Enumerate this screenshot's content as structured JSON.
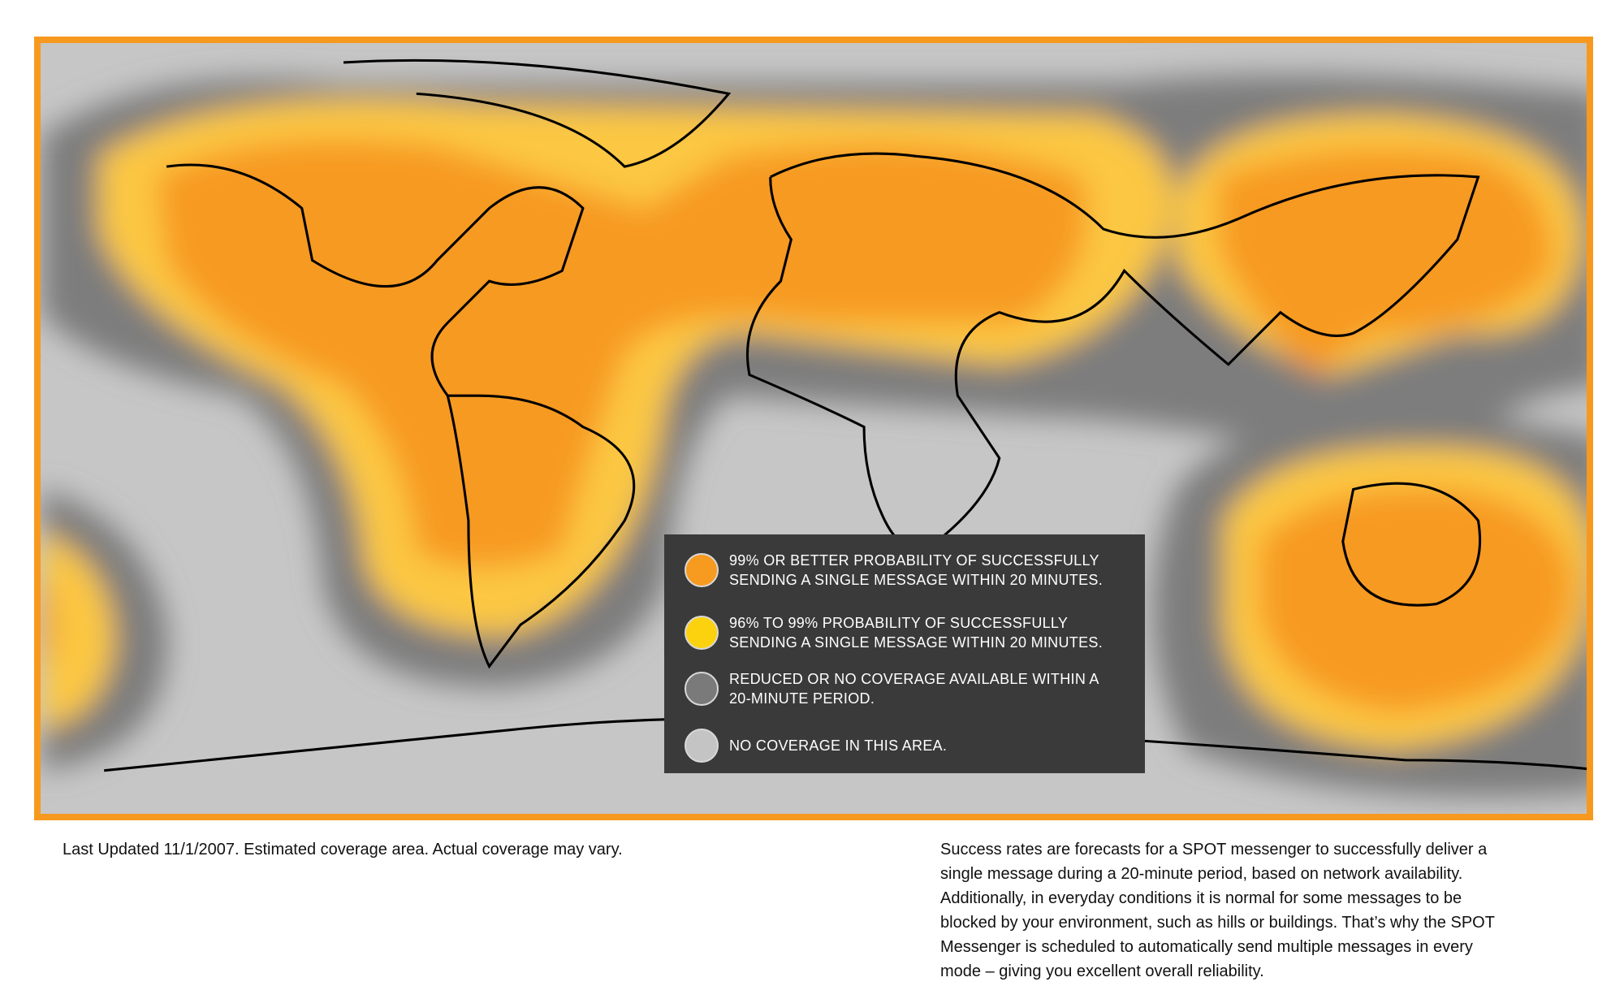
{
  "map": {
    "legend": [
      {
        "lines": [
          "99% OR BETTER PROBABILITY OF SUCCESSFULLY",
          "SENDING A SINGLE MESSAGE WITHIN 20 MINUTES."
        ]
      },
      {
        "lines": [
          "96% TO 99% PROBABILITY OF SUCCESSFULLY",
          "SENDING A SINGLE MESSAGE WITHIN 20 MINUTES."
        ]
      },
      {
        "lines": [
          "REDUCED OR NO COVERAGE AVAILABLE WITHIN A",
          "20-MINUTE PERIOD."
        ]
      },
      {
        "lines": [
          "NO COVERAGE IN THIS AREA."
        ]
      }
    ],
    "footer": {
      "note": "Last Updated 11/1/2007. Estimated coverage area. Actual coverage may vary.",
      "description": [
        "Success rates are forecasts for a SPOT messenger to successfully deliver a",
        "single message during a 20-minute period, based on network availability.",
        "Additionally, in everyday conditions it is normal for some messages to be",
        "blocked by your environment, such as hills or buildings. That’s why the SPOT",
        "Messenger is scheduled to automatically send multiple messages in every",
        "mode – giving you excellent overall reliability."
      ]
    }
  }
}
